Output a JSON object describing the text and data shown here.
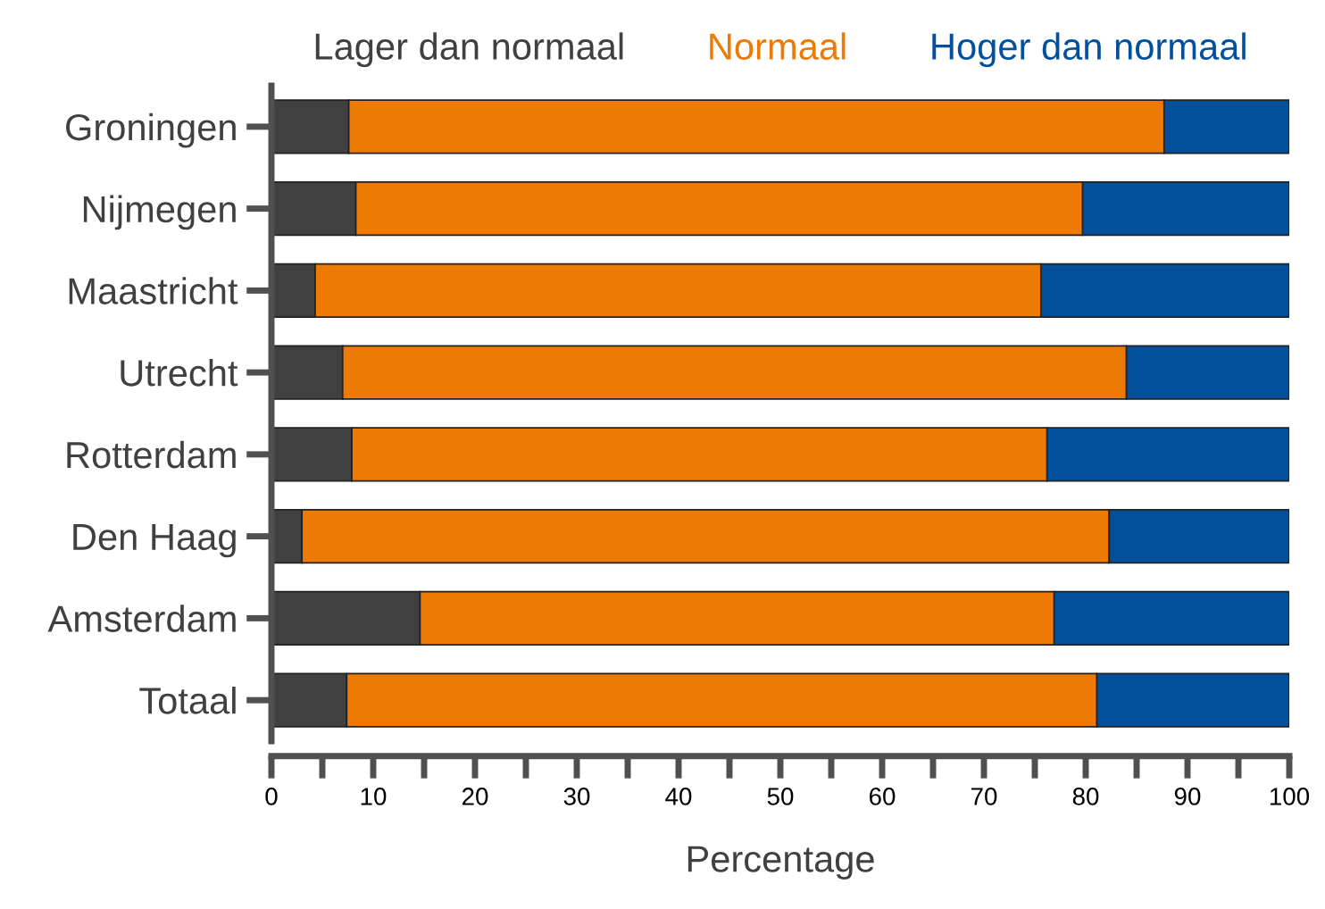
{
  "chart_data": {
    "type": "bar",
    "orientation": "horizontal",
    "stacked": true,
    "xlabel": "Percentage",
    "categories": [
      "Groningen",
      "Nijmegen",
      "Maastricht",
      "Utrecht",
      "Rotterdam",
      "Den Haag",
      "Amsterdam",
      "Totaal"
    ],
    "series": [
      {
        "name": "Lager dan normaal",
        "color": "#404040",
        "values": [
          7.6,
          8.3,
          4.3,
          7.0,
          7.9,
          3.0,
          14.6,
          7.4
        ]
      },
      {
        "name": "Normaal",
        "color": "#ec7a04",
        "values": [
          80.1,
          71.4,
          71.3,
          77.0,
          68.3,
          79.3,
          62.3,
          73.7
        ]
      },
      {
        "name": "Hoger dan normaal",
        "color": "#02509b",
        "values": [
          12.3,
          20.3,
          24.4,
          16.0,
          23.8,
          17.7,
          23.1,
          18.9
        ]
      }
    ],
    "xlim": [
      0,
      100
    ],
    "xticks": [
      0,
      {
        "value": 5,
        "label": null
      },
      10,
      {
        "value": 15,
        "label": null
      },
      20,
      {
        "value": 25,
        "label": null
      },
      30,
      {
        "value": 35,
        "label": null
      },
      40,
      {
        "value": 45,
        "label": null
      },
      50,
      {
        "value": 55,
        "label": null
      },
      60,
      {
        "value": 65,
        "label": null
      },
      70,
      {
        "value": 75,
        "label": null
      },
      80,
      {
        "value": 85,
        "label": null
      },
      90,
      {
        "value": 95,
        "label": null
      },
      100
    ],
    "grid": false,
    "legend": "top"
  }
}
